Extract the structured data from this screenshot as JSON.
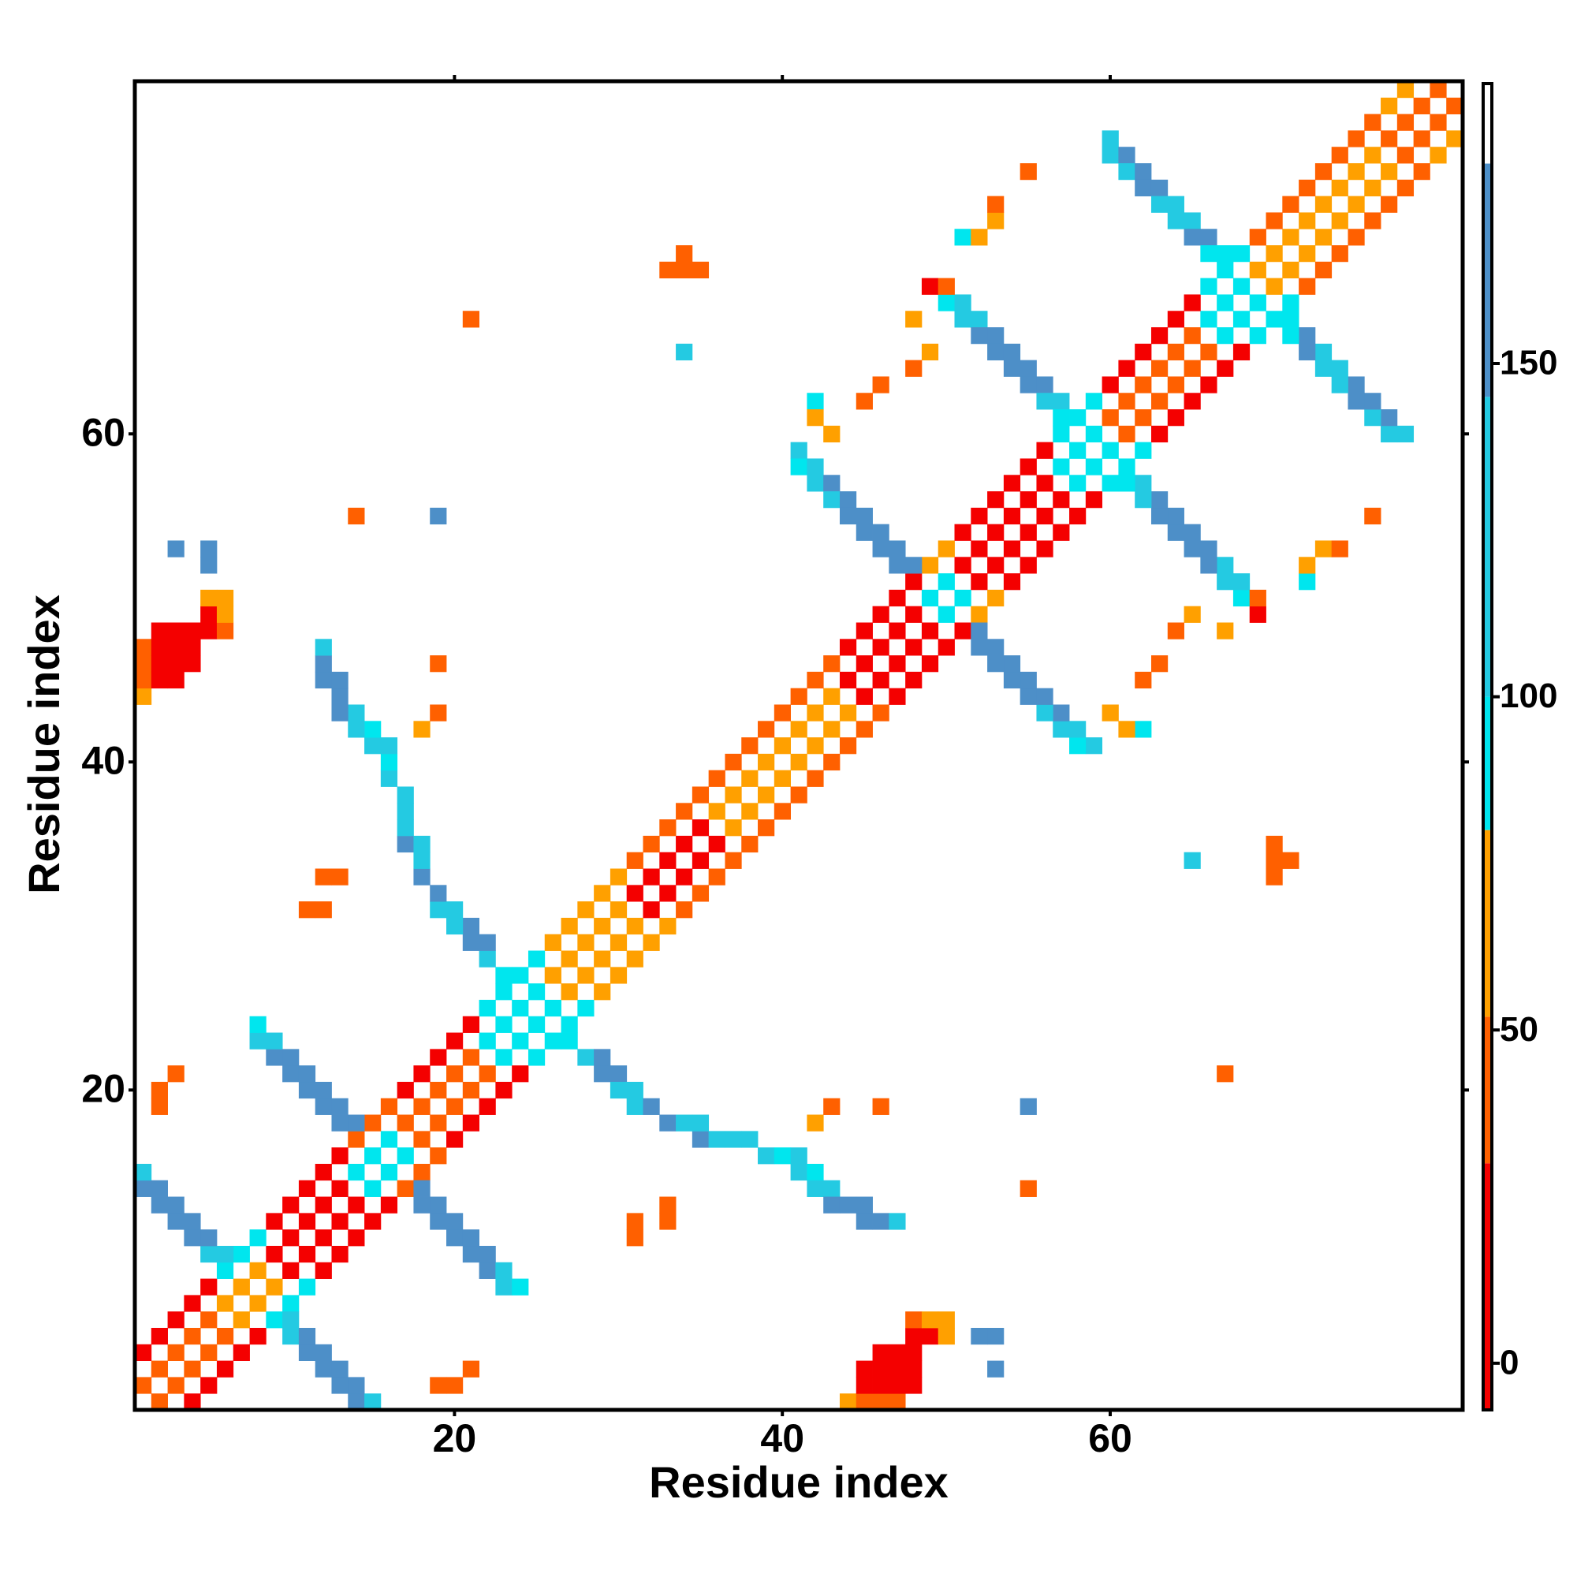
{
  "chart_data": {
    "type": "heatmap",
    "xlabel": "Residue index",
    "ylabel": "Residue index",
    "xlim": [
      0.5,
      81.5
    ],
    "ylim": [
      0.5,
      81.5
    ],
    "xticks": [
      20,
      40,
      60
    ],
    "yticks": [
      20,
      40,
      60
    ],
    "zlim": [
      -7,
      192
    ],
    "zticks": [
      0,
      50,
      100,
      150
    ],
    "symmetric": true,
    "colorscale": [
      {
        "value": -7,
        "color": "#f40000"
      },
      {
        "value": 30,
        "color": "#ff6000"
      },
      {
        "value": 52,
        "color": "#ffa000"
      },
      {
        "value": 80,
        "color": "#00e6ee"
      },
      {
        "value": 100,
        "color": "#24cae2"
      },
      {
        "value": 145,
        "color": "#4d8fc8"
      },
      {
        "value": 180,
        "color": "#ffffff"
      }
    ],
    "x": [
      1,
      2,
      3,
      4,
      5,
      6,
      7,
      8,
      9,
      10,
      11,
      12,
      13,
      14,
      15,
      16,
      17,
      18,
      19,
      20,
      21,
      22,
      23,
      24,
      25,
      26,
      27,
      28,
      29,
      30,
      31,
      32,
      33,
      34,
      35,
      36,
      37,
      38,
      39,
      40,
      41,
      42,
      43,
      44,
      45,
      46,
      47,
      48,
      49,
      50,
      51,
      52,
      53,
      54,
      55,
      56,
      57,
      58,
      59,
      60,
      61,
      62,
      63,
      64,
      65,
      66,
      67,
      68,
      69,
      70,
      71,
      72,
      73,
      74,
      75,
      76,
      77,
      78,
      79,
      80,
      1,
      2,
      3,
      4,
      5,
      6,
      7,
      8,
      9,
      10,
      11,
      12,
      13,
      14,
      15,
      16,
      17,
      18,
      19,
      20,
      21,
      22,
      23,
      24,
      25,
      26,
      27,
      28,
      29,
      30,
      31,
      32,
      33,
      34,
      35,
      36,
      37,
      38,
      39,
      40,
      41,
      42,
      43,
      44,
      45,
      46,
      47,
      48,
      49,
      50,
      51,
      52,
      53,
      54,
      55,
      56,
      57,
      58,
      59,
      60,
      61,
      62,
      63,
      64,
      65,
      66,
      67,
      68,
      69,
      70,
      71,
      72,
      73,
      74,
      75,
      76,
      77,
      78,
      1,
      1,
      2,
      2,
      3,
      3,
      4,
      4,
      5,
      5,
      6,
      8,
      8,
      9,
      9,
      10,
      10,
      11,
      11,
      12,
      12,
      13,
      13,
      14,
      23,
      22,
      22,
      21,
      21,
      20,
      20,
      19,
      19,
      18,
      18,
      17,
      18,
      17,
      17,
      17,
      16,
      16,
      16,
      15,
      15,
      14,
      14,
      13,
      13,
      12,
      13,
      12,
      12,
      18,
      19,
      41,
      41,
      42,
      42,
      43,
      43,
      44,
      44,
      45,
      45,
      46,
      46,
      47,
      47,
      48,
      42,
      42,
      43,
      50,
      51,
      51,
      52,
      52,
      53,
      53,
      54,
      54,
      55,
      55,
      56,
      56,
      57,
      57,
      48,
      49,
      50,
      51,
      52,
      53,
      53,
      55,
      48,
      49,
      46,
      45,
      60,
      60,
      61,
      61,
      62,
      62,
      63,
      63,
      64,
      64,
      65,
      65,
      66,
      66,
      67,
      1,
      1,
      1,
      1,
      2,
      2,
      2,
      2,
      3,
      3,
      3,
      3,
      4,
      4,
      4,
      5,
      5,
      5,
      6,
      6,
      6,
      3,
      5,
      5,
      14,
      19,
      11,
      12,
      12,
      13,
      19,
      2,
      2,
      3,
      21,
      33,
      34,
      35,
      34,
      34
    ],
    "y": [
      2,
      3,
      4,
      5,
      6,
      7,
      8,
      9,
      10,
      11,
      12,
      13,
      14,
      15,
      16,
      17,
      18,
      19,
      20,
      21,
      22,
      23,
      24,
      25,
      26,
      27,
      28,
      29,
      30,
      31,
      32,
      33,
      34,
      35,
      36,
      37,
      38,
      39,
      40,
      41,
      42,
      43,
      44,
      45,
      46,
      47,
      48,
      49,
      50,
      51,
      52,
      53,
      54,
      55,
      56,
      57,
      58,
      59,
      60,
      61,
      62,
      63,
      64,
      65,
      66,
      67,
      68,
      69,
      70,
      71,
      72,
      73,
      74,
      75,
      76,
      77,
      78,
      79,
      80,
      81,
      4,
      5,
      6,
      7,
      8,
      9,
      10,
      11,
      12,
      13,
      14,
      15,
      16,
      17,
      18,
      19,
      20,
      21,
      22,
      23,
      24,
      25,
      26,
      27,
      28,
      29,
      30,
      31,
      32,
      33,
      34,
      35,
      36,
      37,
      38,
      39,
      40,
      41,
      42,
      43,
      44,
      45,
      46,
      47,
      48,
      49,
      50,
      51,
      52,
      53,
      54,
      55,
      56,
      57,
      58,
      59,
      60,
      61,
      62,
      63,
      64,
      65,
      66,
      67,
      68,
      69,
      70,
      71,
      72,
      73,
      74,
      75,
      76,
      77,
      78,
      79,
      80,
      81,
      14,
      15,
      13,
      14,
      12,
      13,
      11,
      12,
      10,
      11,
      10,
      23,
      24,
      22,
      23,
      21,
      22,
      20,
      21,
      19,
      20,
      18,
      19,
      18,
      27,
      28,
      29,
      29,
      30,
      30,
      31,
      31,
      32,
      33,
      34,
      35,
      35,
      36,
      37,
      38,
      39,
      40,
      41,
      41,
      42,
      42,
      43,
      43,
      44,
      45,
      45,
      46,
      47,
      42,
      43,
      59,
      58,
      58,
      57,
      57,
      56,
      56,
      55,
      55,
      54,
      54,
      53,
      53,
      52,
      52,
      62,
      61,
      60,
      68,
      67,
      68,
      67,
      66,
      66,
      65,
      65,
      64,
      64,
      63,
      63,
      62,
      62,
      61,
      67,
      69,
      69,
      72,
      72,
      73,
      74,
      76,
      64,
      65,
      63,
      62,
      78,
      77,
      77,
      76,
      76,
      75,
      75,
      74,
      74,
      73,
      73,
      72,
      72,
      71,
      71,
      44,
      45,
      46,
      47,
      45,
      46,
      47,
      48,
      45,
      46,
      47,
      48,
      46,
      47,
      48,
      48,
      49,
      50,
      48,
      49,
      50,
      53,
      52,
      53,
      55,
      55,
      31,
      31,
      33,
      33,
      46,
      19,
      20,
      21,
      67,
      70,
      70,
      70,
      71,
      65
    ],
    "values": [
      40,
      40,
      40,
      40,
      40,
      65,
      65,
      65,
      10,
      10,
      10,
      10,
      10,
      90,
      90,
      90,
      40,
      40,
      40,
      40,
      40,
      90,
      90,
      90,
      90,
      65,
      65,
      65,
      65,
      65,
      10,
      10,
      10,
      10,
      10,
      65,
      65,
      65,
      65,
      65,
      65,
      65,
      65,
      10,
      10,
      10,
      10,
      10,
      90,
      90,
      10,
      10,
      10,
      10,
      10,
      10,
      90,
      90,
      90,
      40,
      40,
      40,
      40,
      40,
      40,
      90,
      90,
      90,
      65,
      65,
      65,
      65,
      65,
      65,
      65,
      65,
      40,
      40,
      40,
      40,
      10,
      10,
      10,
      10,
      10,
      90,
      90,
      90,
      10,
      10,
      10,
      10,
      10,
      40,
      40,
      40,
      10,
      10,
      10,
      10,
      10,
      90,
      90,
      90,
      90,
      65,
      65,
      65,
      65,
      65,
      40,
      40,
      40,
      40,
      40,
      40,
      40,
      40,
      40,
      40,
      40,
      40,
      40,
      10,
      10,
      10,
      10,
      10,
      65,
      65,
      10,
      10,
      10,
      10,
      10,
      10,
      90,
      90,
      90,
      10,
      10,
      10,
      10,
      10,
      10,
      90,
      90,
      90,
      40,
      40,
      40,
      40,
      40,
      40,
      40,
      40,
      65,
      65,
      160,
      120,
      160,
      160,
      160,
      160,
      160,
      160,
      120,
      160,
      120,
      120,
      90,
      160,
      120,
      160,
      160,
      160,
      160,
      160,
      160,
      160,
      160,
      160,
      90,
      120,
      160,
      160,
      160,
      120,
      120,
      120,
      160,
      160,
      120,
      160,
      120,
      120,
      120,
      120,
      120,
      90,
      120,
      120,
      90,
      120,
      120,
      160,
      160,
      160,
      160,
      160,
      120,
      65,
      40,
      120,
      90,
      120,
      120,
      160,
      120,
      160,
      160,
      160,
      160,
      160,
      160,
      160,
      160,
      160,
      90,
      65,
      65,
      90,
      120,
      120,
      120,
      160,
      160,
      160,
      160,
      160,
      160,
      160,
      160,
      120,
      120,
      90,
      65,
      10,
      40,
      90,
      65,
      65,
      40,
      40,
      40,
      65,
      40,
      40,
      120,
      120,
      160,
      120,
      160,
      160,
      160,
      120,
      120,
      120,
      120,
      160,
      160,
      90,
      90,
      65,
      40,
      40,
      40,
      10,
      10,
      10,
      10,
      10,
      10,
      10,
      10,
      10,
      10,
      10,
      10,
      10,
      65,
      40,
      65,
      65,
      160,
      160,
      160,
      40,
      160,
      40,
      40,
      40,
      40,
      40,
      40,
      40,
      40,
      40,
      40,
      40,
      40,
      40,
      120
    ]
  }
}
